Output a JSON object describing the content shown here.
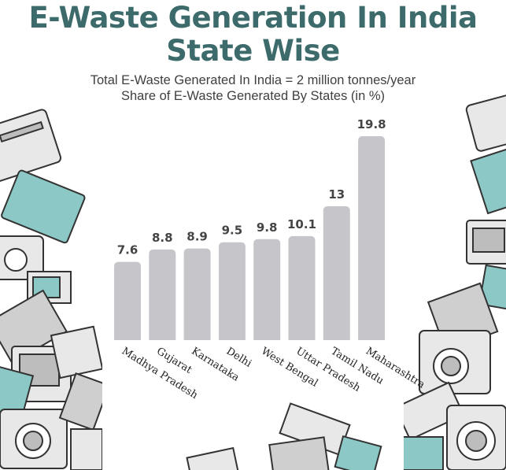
{
  "title_line1": "E-Waste Generation In India",
  "title_line2": "State Wise",
  "subtitle_line1": "Total E-Waste Generated In India = 2 million tonnes/year",
  "subtitle_line2": "Share of E-Waste Generated By States (in %)",
  "colors": {
    "title": "#3d6b6b",
    "bar": "#c6c6ca",
    "value_text": "#444444",
    "teal_accent": "#8cc9c6",
    "appliance_gray": "#e8e8e8",
    "appliance_outline": "#333333"
  },
  "decoration": {
    "left": "pile-of-e-waste-appliances-illustration",
    "right": "pile-of-e-waste-appliances-illustration"
  },
  "chart_data": {
    "type": "bar",
    "categories": [
      "Madhya Pradesh",
      "Gujarat",
      "Karnataka",
      "Delhi",
      "West Bengal",
      "Uttar Pradesh",
      "Tamil Nadu",
      "Maharashtra"
    ],
    "values": [
      7.6,
      8.8,
      8.9,
      9.5,
      9.8,
      10.1,
      13,
      19.8
    ],
    "value_labels": [
      "7.6",
      "8.8",
      "8.9",
      "9.5",
      "9.8",
      "10.1",
      "13",
      "19.8"
    ],
    "unit": "%",
    "ylim": [
      0,
      19.8
    ],
    "grid": false,
    "axes_visible": false,
    "legend": "none",
    "tick_label_rotation": "diagonal"
  }
}
